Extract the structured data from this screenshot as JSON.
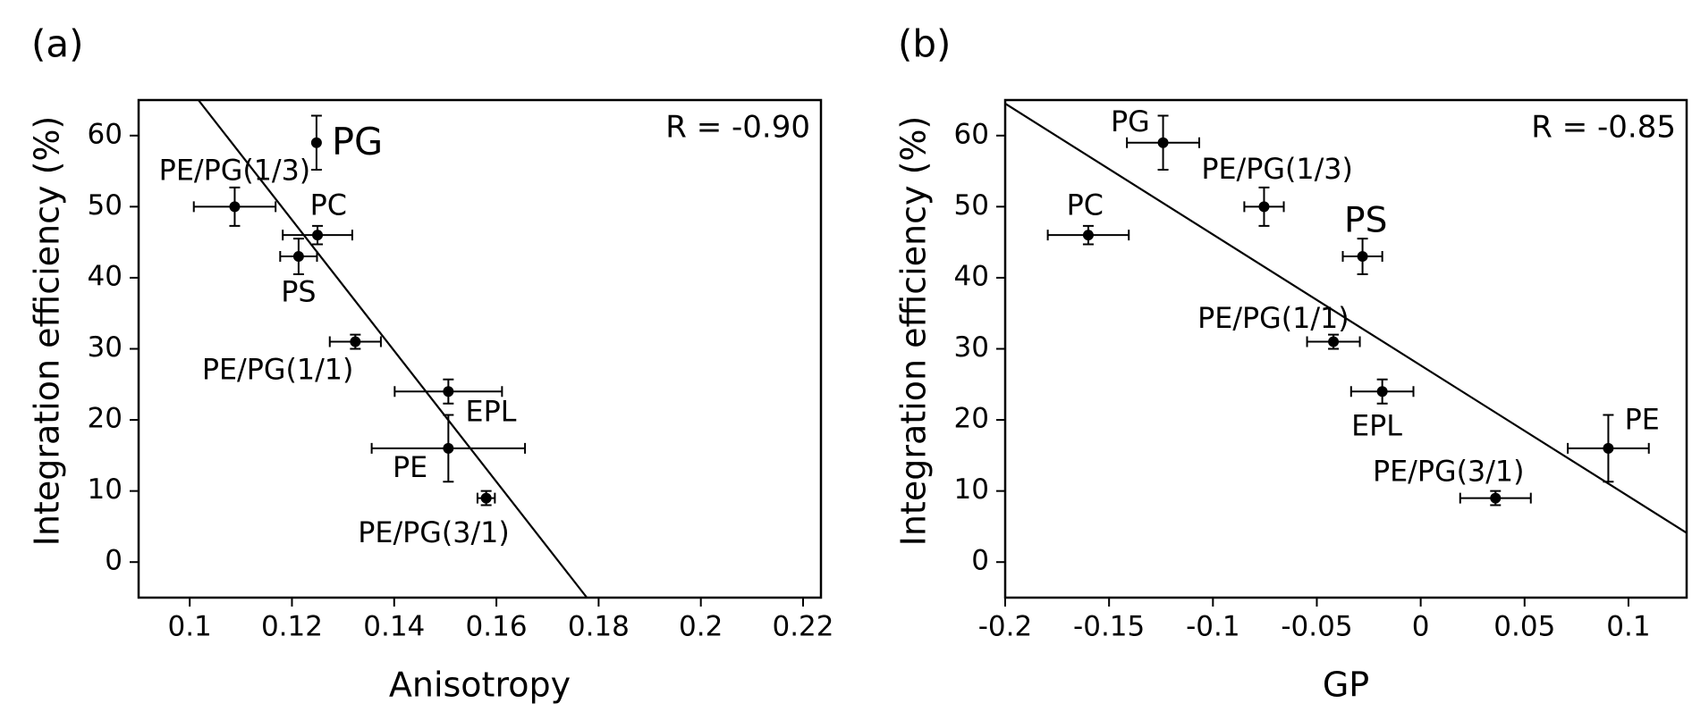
{
  "chart_data": [
    {
      "type": "scatter",
      "panel": "(a)",
      "annotation": "R = -0.90",
      "xlabel": "Anisotropy",
      "ylabel": "Integration efficiency (%)",
      "color": "#000000",
      "xlim": [
        0.09,
        0.2235
      ],
      "ylim": [
        -5,
        65
      ],
      "xticks": [
        0.1,
        0.12,
        0.14,
        0.16,
        0.18,
        0.2,
        0.22
      ],
      "yticks": [
        0,
        10,
        20,
        30,
        40,
        50,
        60
      ],
      "point_labels": [
        "PG",
        "PE/PG(1/3)",
        "PC",
        "PS",
        "PE/PG(1/1)",
        "EPL",
        "PE",
        "PE/PG(3/1)"
      ],
      "x": [
        0.1248,
        0.1088,
        0.125,
        0.1213,
        0.1324,
        0.1506,
        0.1506,
        0.158
      ],
      "y": [
        59,
        50,
        46,
        43,
        31,
        24,
        16,
        9
      ],
      "xerr": [
        0,
        0.008,
        0.0068,
        0.0036,
        0.005,
        0.0105,
        0.015,
        0.0017
      ],
      "yerr": [
        3.8,
        2.7,
        1.3,
        2.5,
        1,
        1.7,
        4.7,
        1
      ],
      "fit_line": {
        "x": [
          0.1017,
          0.1777
        ],
        "y": [
          65,
          -5
        ]
      }
    },
    {
      "type": "scatter",
      "panel": "(b)",
      "annotation": "R = -0.85",
      "xlabel": "GP",
      "ylabel": "Integration efficiency (%)",
      "color": "#000000",
      "xlim": [
        -0.2,
        0.128
      ],
      "ylim": [
        -5,
        65
      ],
      "xticks": [
        -0.2,
        -0.15,
        -0.1,
        -0.05,
        0,
        0.05,
        0.1
      ],
      "yticks": [
        0,
        10,
        20,
        30,
        40,
        50,
        60
      ],
      "point_labels": [
        "PG",
        "PE/PG(1/3)",
        "PC",
        "PS",
        "PE/PG(1/1)",
        "EPL",
        "PE",
        "PE/PG(3/1)"
      ],
      "x": [
        -0.124,
        -0.0754,
        -0.16,
        -0.028,
        -0.042,
        -0.0185,
        0.0903,
        0.036
      ],
      "y": [
        59,
        50,
        46,
        43,
        31,
        24,
        16,
        9
      ],
      "xerr": [
        0.0174,
        0.0095,
        0.0195,
        0.0095,
        0.0127,
        0.015,
        0.0195,
        0.017
      ],
      "yerr": [
        3.8,
        2.7,
        1.3,
        2.5,
        1,
        1.7,
        4.7,
        1
      ],
      "fit_line": {
        "x": [
          -0.2,
          0.128
        ],
        "y": [
          64.5,
          4.1
        ]
      }
    }
  ]
}
